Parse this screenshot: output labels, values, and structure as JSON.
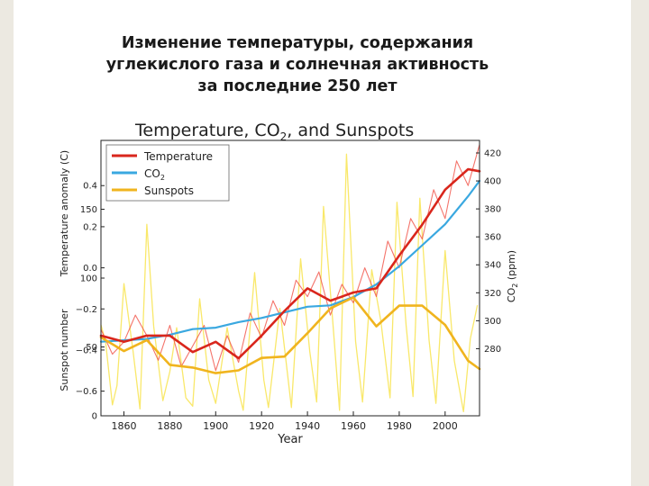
{
  "slide": {
    "title_lines": [
      "Изменение температуры, содержания",
      "углекислого газа и солнечная активность",
      "за последние 250 лет"
    ]
  },
  "colors": {
    "temperature": "#d9261c",
    "temperature_raw": "#f0463a",
    "co2": "#3aa8e0",
    "sunspots": "#f0b41e",
    "sunspots_raw": "#f8e65a",
    "side_bars": "#ece9e1"
  },
  "chart_data": {
    "type": "line",
    "title": "Temperature, CO",
    "title_sub": "2",
    "title_tail": ", and Sunspots",
    "xlabel": "Year",
    "xlim": [
      1850,
      2015
    ],
    "xticks": [
      1860,
      1880,
      1900,
      1920,
      1940,
      1960,
      1980,
      2000
    ],
    "temperature_axis": {
      "label": "Temperature anomaly (C)",
      "ylim": [
        -0.72,
        0.62
      ],
      "ticks": [
        "0.4",
        "0.2",
        "0.0",
        "−0.2",
        "−0.4",
        "−0.6"
      ],
      "tick_values": [
        0.4,
        0.2,
        0.0,
        -0.2,
        -0.4,
        -0.6
      ]
    },
    "sunspot_axis": {
      "label": "Sunspot number",
      "ylim": [
        0,
        200
      ],
      "ticks": [
        "150",
        "100",
        "50",
        "0"
      ],
      "tick_values": [
        150,
        100,
        50,
        0
      ]
    },
    "co2_axis": {
      "label": "CO",
      "label_sub": "2",
      "label_tail": " (ppm)",
      "ylim": [
        232,
        429
      ],
      "ticks": [
        "420",
        "400",
        "380",
        "360",
        "340",
        "320",
        "300",
        "280"
      ],
      "tick_values": [
        420,
        400,
        380,
        360,
        340,
        320,
        300,
        280
      ]
    },
    "legend": {
      "placement": "top-left",
      "entries": [
        {
          "label": "Temperature",
          "series": "temperature"
        },
        {
          "label": "CO",
          "sub": "2",
          "series": "co2"
        },
        {
          "label": "Sunspots",
          "series": "sunspots"
        }
      ]
    },
    "series": [
      {
        "name": "Temperature (smoothed)",
        "axis": "temperature",
        "x": [
          1850,
          1860,
          1870,
          1880,
          1890,
          1900,
          1910,
          1920,
          1930,
          1940,
          1950,
          1960,
          1970,
          1980,
          1990,
          2000,
          2010,
          2015
        ],
        "values": [
          -0.33,
          -0.36,
          -0.33,
          -0.33,
          -0.41,
          -0.36,
          -0.44,
          -0.33,
          -0.21,
          -0.1,
          -0.16,
          -0.12,
          -0.1,
          0.06,
          0.21,
          0.38,
          0.48,
          0.47
        ]
      },
      {
        "name": "Temperature (annual)",
        "axis": "temperature",
        "x": [
          1850,
          1855,
          1860,
          1865,
          1870,
          1875,
          1880,
          1885,
          1890,
          1895,
          1900,
          1905,
          1910,
          1915,
          1920,
          1925,
          1930,
          1935,
          1940,
          1945,
          1950,
          1955,
          1960,
          1965,
          1970,
          1975,
          1980,
          1985,
          1990,
          1995,
          2000,
          2005,
          2010,
          2015
        ],
        "values": [
          -0.3,
          -0.42,
          -0.36,
          -0.23,
          -0.33,
          -0.45,
          -0.28,
          -0.48,
          -0.38,
          -0.28,
          -0.5,
          -0.33,
          -0.46,
          -0.22,
          -0.34,
          -0.16,
          -0.28,
          -0.06,
          -0.14,
          -0.02,
          -0.23,
          -0.08,
          -0.17,
          0.0,
          -0.14,
          0.13,
          0.0,
          0.24,
          0.14,
          0.38,
          0.24,
          0.52,
          0.4,
          0.6
        ]
      },
      {
        "name": "CO2",
        "axis": "co2",
        "x": [
          1850,
          1860,
          1870,
          1880,
          1890,
          1900,
          1910,
          1920,
          1930,
          1940,
          1950,
          1960,
          1970,
          1980,
          1990,
          2000,
          2010,
          2015
        ],
        "values": [
          285,
          286,
          287,
          290,
          294,
          295,
          299,
          302,
          306,
          310,
          311,
          317,
          326,
          339,
          354,
          369,
          389,
          400
        ]
      },
      {
        "name": "Sunspots (smoothed)",
        "axis": "sunspots",
        "x": [
          1850,
          1860,
          1870,
          1880,
          1890,
          1900,
          1910,
          1920,
          1930,
          1940,
          1950,
          1960,
          1970,
          1980,
          1990,
          2000,
          2010,
          2015
        ],
        "values": [
          57,
          47,
          55,
          37,
          35,
          31,
          33,
          42,
          43,
          60,
          78,
          86,
          65,
          80,
          80,
          66,
          40,
          34
        ]
      },
      {
        "name": "Sunspots (annual)",
        "axis": "sunspots",
        "x": [
          1850,
          1852,
          1855,
          1857,
          1860,
          1864,
          1867,
          1870,
          1873,
          1877,
          1880,
          1883,
          1887,
          1890,
          1893,
          1897,
          1900,
          1905,
          1910,
          1912,
          1917,
          1921,
          1923,
          1928,
          1933,
          1937,
          1941,
          1944,
          1947,
          1951,
          1954,
          1957,
          1961,
          1964,
          1968,
          1972,
          1976,
          1979,
          1983,
          1986,
          1989,
          1993,
          1996,
          2000,
          2004,
          2008,
          2011,
          2014
        ],
        "values": [
          66,
          54,
          8,
          22,
          96,
          47,
          5,
          139,
          65,
          11,
          32,
          64,
          13,
          7,
          85,
          26,
          9,
          64,
          18,
          4,
          104,
          26,
          6,
          78,
          6,
          114,
          47,
          10,
          152,
          69,
          4,
          190,
          54,
          10,
          106,
          69,
          13,
          155,
          66,
          14,
          158,
          55,
          9,
          120,
          40,
          3,
          56,
          80
        ]
      }
    ]
  }
}
